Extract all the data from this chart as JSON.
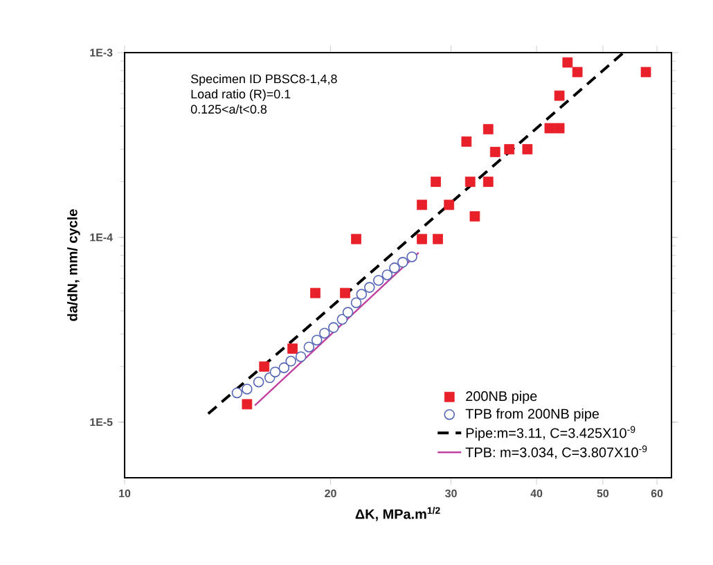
{
  "chart_data": {
    "type": "scatter",
    "xlabel": "ΔK, MPa.m$^{1/2}$",
    "ylabel": "da/dN, mm/ cycle",
    "log": "xy",
    "xlim": [
      10,
      63
    ],
    "ylim": [
      5e-06,
      0.001
    ],
    "xticks": [
      10,
      20,
      30,
      40,
      50,
      60
    ],
    "yticks": [
      {
        "value": 1e-05,
        "label": "1E-5"
      },
      {
        "value": 0.0001,
        "label": "1E-4"
      },
      {
        "value": 0.001,
        "label": "1E-3"
      }
    ],
    "grid": false,
    "legend": "bottom right",
    "annotations": [
      "Specimen ID PBSC8-1,4,8",
      "Load ratio (R)=0.1",
      "0.125<a/t<0.8"
    ],
    "series": [
      {
        "name": "200NB pipe",
        "marker": "square",
        "color": "#e8202a",
        "x": [
          44.4,
          45.9,
          57.8,
          43.2,
          34.0,
          31.6,
          41.8,
          43.2,
          34.8,
          36.5,
          38.8,
          28.5,
          32.0,
          34.0,
          27.2,
          29.8,
          32.5,
          21.8,
          27.2,
          28.7,
          19.0,
          21.0,
          17.6,
          16.0,
          15.1
        ],
        "values": [
          0.000885,
          0.000785,
          0.000785,
          0.000585,
          0.000385,
          0.00033,
          0.00039,
          0.00039,
          0.00029,
          0.0003,
          0.0003,
          0.0002,
          0.0002,
          0.0002,
          0.00015,
          0.00015,
          0.00013,
          9.8e-05,
          9.8e-05,
          9.8e-05,
          5e-05,
          5e-05,
          2.5e-05,
          2e-05,
          1.25e-05
        ]
      },
      {
        "name": "TPB from 200NB pipe",
        "marker": "circle",
        "color": "#5565b5",
        "x": [
          14.6,
          15.1,
          15.7,
          16.3,
          16.6,
          17.1,
          17.5,
          18.1,
          18.6,
          19.1,
          19.6,
          20.2,
          20.8,
          21.2,
          21.8,
          22.2,
          22.8,
          23.5,
          24.2,
          24.8,
          25.5,
          26.3
        ],
        "values": [
          1.44e-05,
          1.51e-05,
          1.65e-05,
          1.74e-05,
          1.87e-05,
          1.97e-05,
          2.14e-05,
          2.26e-05,
          2.55e-05,
          2.78e-05,
          3.03e-05,
          3.25e-05,
          3.6e-05,
          3.93e-05,
          4.43e-05,
          4.92e-05,
          5.36e-05,
          5.85e-05,
          6.27e-05,
          6.84e-05,
          7.33e-05,
          7.85e-05
        ]
      },
      {
        "name": "Pipe:m=3.11, C=3.425X10$^{-9}$",
        "type": "line",
        "line_style": "dashed",
        "marker": "none",
        "color": "#000000",
        "x": [
          13.25,
          53.6
        ],
        "values": [
          1.11e-05,
          0.001
        ]
      },
      {
        "name": "TPB: m=3.034, C=3.807X10$^{-9}$",
        "type": "line",
        "line_style": "solid",
        "marker": "none",
        "color": "#c040a0",
        "x": [
          15.5,
          26.9
        ],
        "values": [
          1.23e-05,
          8.27e-05
        ]
      }
    ]
  }
}
